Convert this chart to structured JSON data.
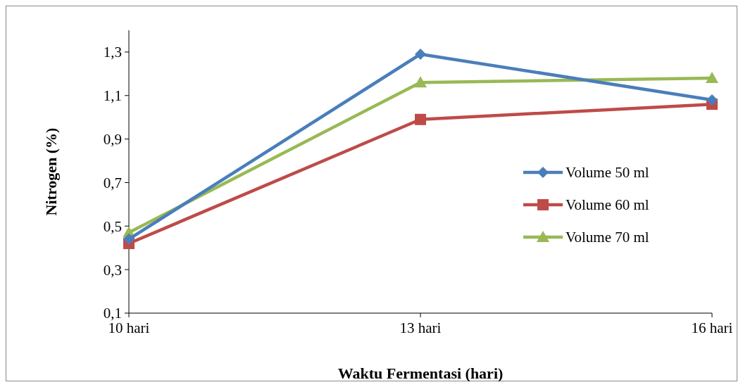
{
  "chart_data": {
    "type": "line",
    "xlabel": "Waktu Fermentasi (hari)",
    "ylabel": "Nitrogen (%)",
    "categories": [
      "10 hari",
      "13 hari",
      "16 hari"
    ],
    "ylim": [
      0.1,
      1.4
    ],
    "yticks": [
      {
        "value": 0.1,
        "label": "0,1"
      },
      {
        "value": 0.3,
        "label": "0,3"
      },
      {
        "value": 0.5,
        "label": "0,5"
      },
      {
        "value": 0.7,
        "label": "0,7"
      },
      {
        "value": 0.9,
        "label": "0,9"
      },
      {
        "value": 1.1,
        "label": "1,1"
      },
      {
        "value": 1.3,
        "label": "1,3"
      }
    ],
    "grid": false,
    "legend": "right",
    "series": [
      {
        "name": "Volume 50 ml",
        "color": "#4a7ebb",
        "marker": "diamond",
        "values": [
          0.44,
          1.29,
          1.08
        ]
      },
      {
        "name": "Volume 60 ml",
        "color": "#be4b48",
        "marker": "square",
        "values": [
          0.42,
          0.99,
          1.06
        ]
      },
      {
        "name": "Volume 70 ml",
        "color": "#98b954",
        "marker": "triangle",
        "values": [
          0.47,
          1.16,
          1.18
        ]
      }
    ]
  }
}
